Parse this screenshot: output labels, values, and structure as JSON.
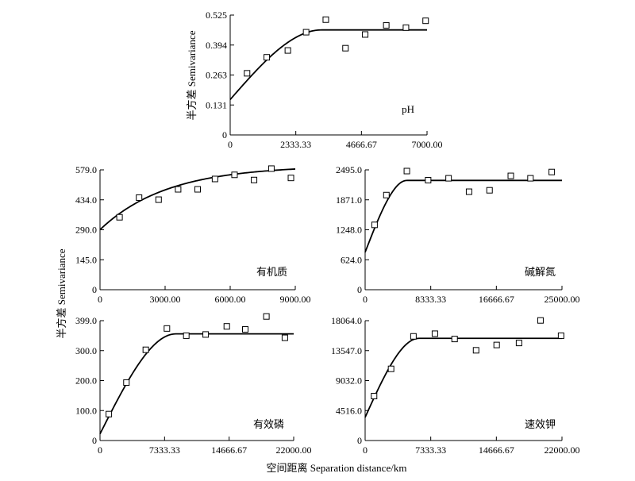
{
  "shared_y_label": "半方差 Semivariance",
  "shared_x_label": "空间距离 Separation distance/km",
  "chart_data": [
    {
      "id": "ph",
      "type": "scatter",
      "name": "pH",
      "ylabel": "半方差 Semivariance",
      "xlim": [
        0,
        7000
      ],
      "ylim": [
        0,
        0.525
      ],
      "xticks": [
        "0",
        "2333.33",
        "4666.67",
        "7000.00"
      ],
      "yticks": [
        "0",
        "0.131",
        "0.263",
        "0.394",
        "0.525"
      ],
      "points": [
        [
          600,
          0.27
        ],
        [
          1300,
          0.34
        ],
        [
          2050,
          0.37
        ],
        [
          2700,
          0.45
        ],
        [
          3400,
          0.505
        ],
        [
          4100,
          0.38
        ],
        [
          4800,
          0.44
        ],
        [
          5550,
          0.48
        ],
        [
          6250,
          0.47
        ],
        [
          6950,
          0.5
        ]
      ],
      "fit": {
        "model": "spherical",
        "nugget": 0.155,
        "sill": 0.46,
        "range": 3250
      }
    },
    {
      "id": "om",
      "type": "scatter",
      "name": "有机质",
      "xlim": [
        0,
        9000
      ],
      "ylim": [
        0,
        579
      ],
      "xticks": [
        "0",
        "3000.00",
        "6000.00",
        "9000.00"
      ],
      "yticks": [
        "0",
        "145.0",
        "290.0",
        "434.0",
        "579.0"
      ],
      "points": [
        [
          900,
          350
        ],
        [
          1800,
          445
        ],
        [
          2700,
          435
        ],
        [
          3600,
          485
        ],
        [
          4500,
          485
        ],
        [
          5300,
          535
        ],
        [
          6200,
          555
        ],
        [
          7100,
          530
        ],
        [
          7900,
          585
        ],
        [
          8800,
          540
        ]
      ],
      "fit": {
        "model": "exponential",
        "nugget": 290,
        "sill": 600,
        "range": 3100
      }
    },
    {
      "id": "an",
      "type": "scatter",
      "name": "碱解氮",
      "xlim": [
        0,
        25000
      ],
      "ylim": [
        0,
        2495
      ],
      "xticks": [
        "0",
        "8333.33",
        "16666.67",
        "25000.00"
      ],
      "yticks": [
        "0",
        "624.0",
        "1248.0",
        "1871.0",
        "2495.0"
      ],
      "points": [
        [
          1200,
          1350
        ],
        [
          2700,
          1970
        ],
        [
          5300,
          2470
        ],
        [
          8000,
          2280
        ],
        [
          10600,
          2320
        ],
        [
          13200,
          2040
        ],
        [
          15800,
          2070
        ],
        [
          18500,
          2370
        ],
        [
          21000,
          2320
        ],
        [
          23700,
          2450
        ]
      ],
      "fit": {
        "model": "spherical",
        "nugget": 780,
        "sill": 2275,
        "range": 5300
      }
    },
    {
      "id": "ap",
      "type": "scatter",
      "name": "有效磷",
      "xlim": [
        0,
        22000
      ],
      "ylim": [
        0,
        399
      ],
      "xticks": [
        "0",
        "7333.33",
        "14666.67",
        "22000.00"
      ],
      "yticks": [
        "0",
        "100.0",
        "200.0",
        "300.0",
        "399.0"
      ],
      "points": [
        [
          1000,
          88
        ],
        [
          3000,
          193
        ],
        [
          5200,
          302
        ],
        [
          7600,
          373
        ],
        [
          9800,
          349
        ],
        [
          12000,
          353
        ],
        [
          14400,
          380
        ],
        [
          16500,
          370
        ],
        [
          18900,
          413
        ],
        [
          21000,
          342
        ]
      ],
      "fit": {
        "model": "spherical",
        "nugget": 22,
        "sill": 355,
        "range": 8600
      }
    },
    {
      "id": "ak",
      "type": "scatter",
      "name": "速效钾",
      "xlim": [
        0,
        22000
      ],
      "ylim": [
        0,
        18064
      ],
      "xticks": [
        "0",
        "7333.33",
        "14666.67",
        "22000.00"
      ],
      "yticks": [
        "0",
        "4516.0",
        "9032.0",
        "13547.0",
        "18064.0"
      ],
      "points": [
        [
          1000,
          6700
        ],
        [
          2900,
          10800
        ],
        [
          5400,
          15700
        ],
        [
          7800,
          16100
        ],
        [
          10000,
          15300
        ],
        [
          12400,
          13600
        ],
        [
          14700,
          14400
        ],
        [
          17200,
          14700
        ],
        [
          19600,
          18100
        ],
        [
          21900,
          15800
        ]
      ],
      "fit": {
        "model": "spherical",
        "nugget": 3500,
        "sill": 15400,
        "range": 6000
      }
    }
  ]
}
